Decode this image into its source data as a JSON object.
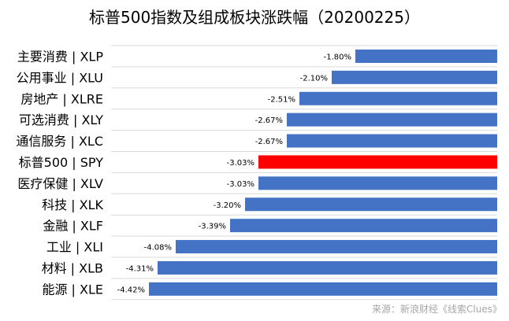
{
  "chart_data": {
    "type": "bar",
    "orientation": "horizontal",
    "title": "标普500指数及组成板块涨跌幅（20200225）",
    "categories": [
      "主要消费 | XLP",
      "公用事业 | XLU",
      "房地产 | XLRE",
      "可选消费 | XLY",
      "通信服务 | XLC",
      "标普500 | SPY",
      "医疗保健 | XLV",
      "科技 | XLK",
      "金融 | XLF",
      "工业 | XLI",
      "材料 | XLB",
      "能源 | XLE"
    ],
    "values": [
      -1.8,
      -2.1,
      -2.51,
      -2.67,
      -2.67,
      -3.03,
      -3.03,
      -3.2,
      -3.39,
      -4.08,
      -4.31,
      -4.42
    ],
    "data_labels": [
      "-1.80%",
      "-2.10%",
      "-2.51%",
      "-2.67%",
      "-2.67%",
      "-3.03%",
      "-3.03%",
      "-3.20%",
      "-3.39%",
      "-4.08%",
      "-4.31%",
      "-4.42%"
    ],
    "highlight_index": 5,
    "colors": {
      "bar": "#4472C4",
      "highlight": "#FF0000",
      "grid": "#D9D9D9",
      "text": "#000000",
      "source": "#A6A6A6"
    },
    "xlim": [
      -4.9,
      0
    ],
    "grid": true,
    "source": "来源：新浪财经《线索Clues》"
  }
}
